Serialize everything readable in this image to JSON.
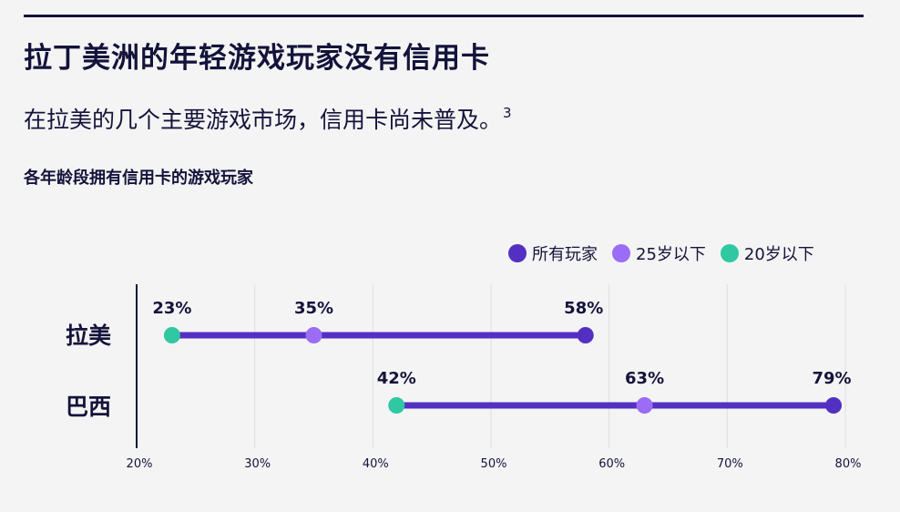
{
  "title": "拉丁美洲的年轻游戏玩家没有信用卡",
  "subtitle": "在拉美的几个主要游戏市场，信用卡尚未普及。",
  "subtitle_ref": "3",
  "chart_data": {
    "type": "dot-range",
    "title": "各年龄段拥有信用卡的游戏玩家",
    "categories": [
      "拉美",
      "巴西"
    ],
    "series": [
      {
        "name": "所有玩家",
        "color": "#5330c2",
        "values": [
          58,
          79
        ]
      },
      {
        "name": "25岁以下",
        "color": "#9b6cf5",
        "values": [
          35,
          63
        ]
      },
      {
        "name": "20岁以下",
        "color": "#2fc8a3",
        "values": [
          23,
          42
        ]
      }
    ],
    "value_labels": [
      [
        "58%",
        "35%",
        "23%"
      ],
      [
        "79%",
        "63%",
        "42%"
      ]
    ],
    "xlim": [
      20,
      80
    ],
    "xticks": [
      20,
      30,
      40,
      50,
      60,
      70,
      80
    ],
    "xtick_labels": [
      "20%",
      "30%",
      "40%",
      "50%",
      "60%",
      "70%",
      "80%"
    ],
    "range_color": "#5330c2",
    "grid": true,
    "legend_position": "top-right"
  }
}
